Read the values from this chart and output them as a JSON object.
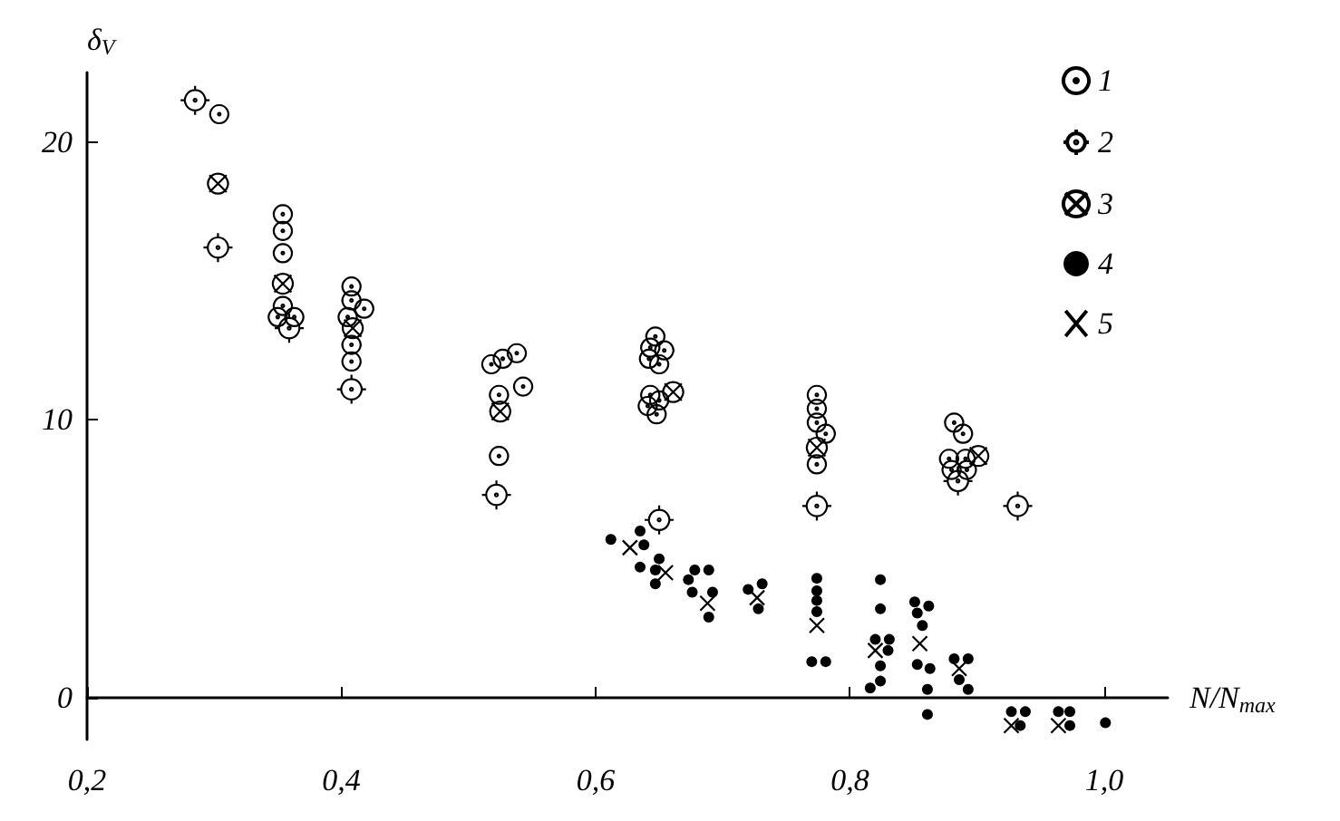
{
  "chart_data": {
    "type": "scatter",
    "xlabel": "N/N$_{max}$",
    "ylabel": "δ$_{V}$",
    "xlim": [
      0.2,
      1.05
    ],
    "ylim": [
      -1.5,
      22.5
    ],
    "xticks": [
      {
        "value": 0.2,
        "label": "0,2"
      },
      {
        "value": 0.4,
        "label": "0,4"
      },
      {
        "value": 0.6,
        "label": "0,6"
      },
      {
        "value": 0.8,
        "label": "0,8"
      },
      {
        "value": 1.0,
        "label": "1,0"
      }
    ],
    "yticks": [
      0,
      10,
      20
    ],
    "grid": false,
    "legend": "top right",
    "series": [
      {
        "name": "1",
        "color": "#000000",
        "x": [
          0.304,
          0.354,
          0.354,
          0.354,
          0.354,
          0.35,
          0.363,
          0.408,
          0.408,
          0.418,
          0.405,
          0.408,
          0.408,
          0.518,
          0.527,
          0.538,
          0.524,
          0.543,
          0.524,
          0.647,
          0.643,
          0.654,
          0.642,
          0.65,
          0.643,
          0.641,
          0.65,
          0.648,
          0.774,
          0.774,
          0.774,
          0.781,
          0.774,
          0.882,
          0.889,
          0.878,
          0.891,
          0.88,
          0.892
        ],
        "values": [
          21.0,
          17.4,
          16.8,
          16.0,
          14.1,
          13.7,
          13.7,
          14.8,
          14.3,
          14.0,
          13.7,
          12.7,
          12.1,
          12.0,
          12.2,
          12.4,
          10.9,
          11.2,
          8.7,
          13.0,
          12.6,
          12.5,
          12.2,
          12.0,
          10.9,
          10.5,
          10.7,
          10.2,
          10.9,
          10.4,
          9.9,
          9.5,
          8.4,
          9.9,
          9.5,
          8.6,
          8.6,
          8.2,
          8.2
        ]
      },
      {
        "name": "2",
        "color": "#000000",
        "x": [
          0.285,
          0.303,
          0.359,
          0.408,
          0.522,
          0.65,
          0.774,
          0.885,
          0.932
        ],
        "values": [
          21.5,
          16.2,
          13.3,
          11.1,
          7.3,
          6.4,
          6.9,
          7.8,
          6.9
        ]
      },
      {
        "name": "3",
        "color": "#000000",
        "x": [
          0.303,
          0.354,
          0.409,
          0.525,
          0.661,
          0.774,
          0.901
        ],
        "values": [
          18.5,
          14.9,
          13.3,
          10.3,
          11.0,
          9.0,
          8.7
        ]
      },
      {
        "name": "4",
        "color": "#000000",
        "marker": "circle",
        "x": [
          0.612,
          0.635,
          0.638,
          0.635,
          0.647,
          0.65,
          0.647,
          0.673,
          0.678,
          0.689,
          0.676,
          0.692,
          0.689,
          0.731,
          0.72,
          0.728,
          0.774,
          0.774,
          0.774,
          0.774,
          0.77,
          0.781,
          0.824,
          0.824,
          0.82,
          0.831,
          0.83,
          0.824,
          0.824,
          0.816,
          0.851,
          0.862,
          0.853,
          0.857,
          0.853,
          0.863,
          0.861,
          0.861,
          0.882,
          0.893,
          0.886,
          0.893,
          0.927,
          0.938,
          0.934,
          0.964,
          0.973,
          0.973,
          1.001
        ],
        "values": [
          5.7,
          6.0,
          5.5,
          4.7,
          4.6,
          5.0,
          4.1,
          4.25,
          4.6,
          4.6,
          3.8,
          3.8,
          2.9,
          4.1,
          3.9,
          3.2,
          4.3,
          3.85,
          3.5,
          3.1,
          1.3,
          1.3,
          4.25,
          3.2,
          2.1,
          2.1,
          1.7,
          1.15,
          0.6,
          0.35,
          3.45,
          3.3,
          3.05,
          2.6,
          1.2,
          1.05,
          0.3,
          -0.6,
          1.4,
          1.4,
          0.65,
          0.3,
          -0.5,
          -0.5,
          -1.0,
          -0.5,
          -0.5,
          -1.0,
          -0.9
        ]
      },
      {
        "name": "5",
        "color": "#000000",
        "marker": "cross",
        "x": [
          0.627,
          0.655,
          0.688,
          0.727,
          0.774,
          0.82,
          0.855,
          0.886,
          0.927,
          0.964
        ],
        "values": [
          5.4,
          4.5,
          3.4,
          3.6,
          2.6,
          1.7,
          1.95,
          1.05,
          -1.0,
          -1.0
        ]
      }
    ]
  }
}
